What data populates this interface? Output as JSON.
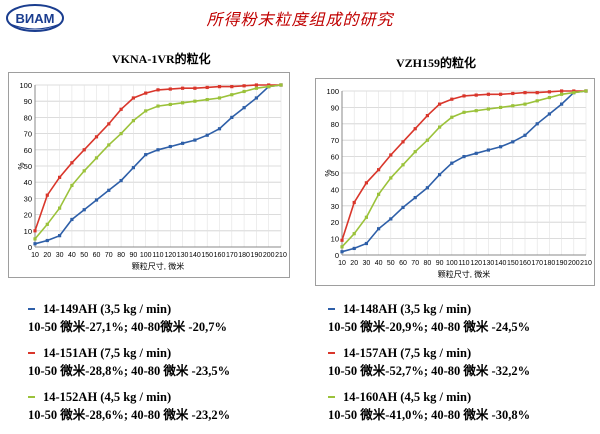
{
  "header": {
    "logo_text": "ВИАМ",
    "title": "所得粉末粒度组成的研究"
  },
  "charts_meta": [
    {
      "title": "VKNA-1VR的粒化",
      "legend": [
        {
          "name": "14-149AH (3,5 kg / min)",
          "desc": "10-50 微米-27,1%; 40-80微米 -20,7%",
          "color": "#2e5fa8"
        },
        {
          "name": "14-151AH (7,5 kg / min)",
          "desc": "10-50 微米-28,8%; 40-80 微米 -23,5%",
          "color": "#d9362b"
        },
        {
          "name": "14-152AH (4,5 kg / min)",
          "desc": "10-50 微米-28,6%; 40-80 微米 -23,2%",
          "color": "#9bc23a"
        }
      ]
    },
    {
      "title": "VZH159的粒化",
      "legend": [
        {
          "name": "14-148AH (3,5 kg / min)",
          "desc": "10-50 微米-20,9%; 40-80 微米 -24,5%",
          "color": "#2e5fa8"
        },
        {
          "name": "14-157AH (7,5 kg / min)",
          "desc": "10-50 微米-52,7%; 40-80 微米 -32,2%",
          "color": "#d9362b"
        },
        {
          "name": "14-160AH (4,5 kg / min)",
          "desc": "10-50 微米-41,0%; 40-80 微米 -30,8%",
          "color": "#9bc23a"
        }
      ]
    }
  ],
  "chart_data": [
    {
      "type": "line",
      "title": "VKNA-1VR的粒化",
      "xlabel": "颗粒尺寸, 微米",
      "ylabel": "%",
      "x": [
        10,
        20,
        30,
        40,
        50,
        60,
        70,
        80,
        90,
        100,
        110,
        120,
        130,
        140,
        150,
        160,
        170,
        180,
        190,
        200,
        210
      ],
      "xticks": [
        "10",
        "20",
        "30",
        "40",
        "50",
        "60",
        "70",
        "80",
        "90",
        "100",
        "110",
        "120",
        "130",
        "140",
        "150",
        "160",
        "170",
        "180",
        "190",
        "200",
        "210"
      ],
      "ylim": [
        0,
        100
      ],
      "yticks": [
        0,
        10,
        20,
        30,
        40,
        50,
        60,
        70,
        80,
        90,
        100
      ],
      "grid": true,
      "series": [
        {
          "color": "#2e5fa8",
          "x": [
            10,
            20,
            30,
            40,
            50,
            60,
            70,
            80,
            90,
            100,
            110,
            120,
            130,
            140,
            150,
            160,
            170,
            180,
            190,
            200,
            210
          ],
          "values": [
            2,
            4,
            7,
            17,
            23,
            29,
            35,
            41,
            49,
            57,
            60,
            62,
            64,
            66,
            69,
            73,
            80,
            86,
            92,
            99,
            100
          ]
        },
        {
          "color": "#d9362b",
          "x": [
            10,
            20,
            30,
            40,
            50,
            60,
            70,
            80,
            90,
            100,
            110,
            120,
            130,
            140,
            150,
            160,
            170,
            180,
            190,
            200,
            210
          ],
          "values": [
            10,
            32,
            43,
            52,
            60,
            68,
            76,
            85,
            92,
            95,
            97,
            97.5,
            98,
            98,
            98.5,
            99,
            99,
            99.5,
            100,
            100,
            100
          ]
        },
        {
          "color": "#9bc23a",
          "x": [
            10,
            20,
            30,
            40,
            50,
            60,
            70,
            80,
            90,
            100,
            110,
            120,
            130,
            140,
            150,
            160,
            170,
            180,
            190,
            200,
            210
          ],
          "values": [
            5,
            14,
            24,
            38,
            47,
            55,
            63,
            70,
            78,
            84,
            87,
            88,
            89,
            90,
            91,
            92,
            94,
            96,
            98,
            99,
            100
          ]
        }
      ]
    },
    {
      "type": "line",
      "title": "VZH159的粒化",
      "xlabel": "颗粒尺寸, 微米",
      "ylabel": "%",
      "x": [
        10,
        20,
        30,
        40,
        50,
        60,
        70,
        80,
        90,
        100,
        110,
        120,
        130,
        140,
        150,
        160,
        170,
        180,
        190,
        200,
        210
      ],
      "xticks": [
        "10",
        "20",
        "30",
        "40",
        "50",
        "60",
        "70",
        "80",
        "90",
        "100",
        "110",
        "120",
        "130",
        "140",
        "150",
        "160",
        "170",
        "180",
        "190",
        "200",
        "210"
      ],
      "ylim": [
        0,
        100
      ],
      "yticks": [
        0,
        10,
        20,
        30,
        40,
        50,
        60,
        70,
        80,
        90,
        100
      ],
      "grid": true,
      "series": [
        {
          "color": "#2e5fa8",
          "x": [
            10,
            20,
            30,
            40,
            50,
            60,
            70,
            80,
            90,
            100,
            110,
            120,
            130,
            140,
            150,
            160,
            170,
            180,
            190,
            200,
            210
          ],
          "values": [
            2,
            4,
            7,
            16,
            22,
            29,
            35,
            41,
            49,
            56,
            60,
            62,
            64,
            66,
            69,
            73,
            80,
            86,
            92,
            99,
            100
          ]
        },
        {
          "color": "#d9362b",
          "x": [
            10,
            20,
            30,
            40,
            50,
            60,
            70,
            80,
            90,
            100,
            110,
            120,
            130,
            140,
            150,
            160,
            170,
            180,
            190,
            200,
            210
          ],
          "values": [
            9,
            32,
            44,
            52,
            61,
            69,
            77,
            85,
            92,
            95,
            97,
            97.5,
            98,
            98,
            98.5,
            99,
            99,
            99.5,
            100,
            100,
            100
          ]
        },
        {
          "color": "#9bc23a",
          "x": [
            10,
            20,
            30,
            40,
            50,
            60,
            70,
            80,
            90,
            100,
            110,
            120,
            130,
            140,
            150,
            160,
            170,
            180,
            190,
            200,
            210
          ],
          "values": [
            5,
            13,
            23,
            37,
            47,
            55,
            63,
            70,
            78,
            84,
            87,
            88,
            89,
            90,
            91,
            92,
            94,
            96,
            98,
            99,
            100
          ]
        }
      ]
    }
  ]
}
